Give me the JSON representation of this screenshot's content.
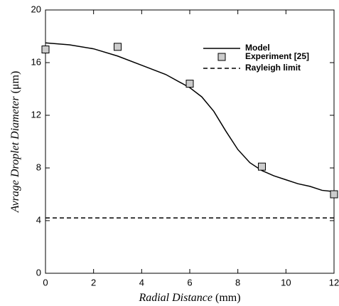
{
  "chart_data": {
    "type": "line",
    "x_label": "Radial Distance",
    "x_unit": "(mm)",
    "y_label": "Avrage Droplet Diameter",
    "y_unit": "(μm)",
    "xlim": [
      0,
      12
    ],
    "xticks": [
      0,
      2,
      4,
      6,
      8,
      10,
      12
    ],
    "ylim": [
      0,
      20
    ],
    "yticks": [
      0,
      4,
      8,
      12,
      16,
      20
    ],
    "legend": "upper right",
    "series": [
      {
        "name": "Model",
        "color": "#000000",
        "style": "solid",
        "x": [
          0,
          1,
          2,
          3,
          4,
          5,
          6,
          6.5,
          7,
          7.5,
          8,
          8.5,
          9,
          9.5,
          10,
          10.5,
          11,
          11.5,
          12
        ],
        "values": [
          17.5,
          17.35,
          17.05,
          16.5,
          15.8,
          15.1,
          14.1,
          13.4,
          12.3,
          10.8,
          9.4,
          8.4,
          7.8,
          7.4,
          7.1,
          6.8,
          6.6,
          6.3,
          6.2
        ]
      },
      {
        "name": "Experiment [25]",
        "color": "#cccccc",
        "style": "square",
        "x": [
          0,
          3,
          6,
          9,
          12
        ],
        "values": [
          17.0,
          17.2,
          14.4,
          8.1,
          6.0
        ]
      },
      {
        "name": "Rayleigh limit",
        "color": "#000000",
        "style": "dashed",
        "x": [
          0,
          12
        ],
        "values": [
          4.2,
          4.2
        ]
      }
    ]
  }
}
